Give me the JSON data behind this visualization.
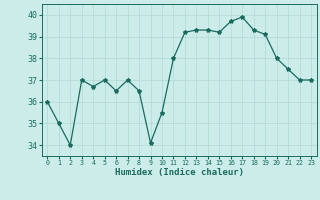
{
  "x": [
    0,
    1,
    2,
    3,
    4,
    5,
    6,
    7,
    8,
    9,
    10,
    11,
    12,
    13,
    14,
    15,
    16,
    17,
    18,
    19,
    20,
    21,
    22,
    23
  ],
  "y": [
    36.0,
    35.0,
    34.0,
    37.0,
    36.7,
    37.0,
    36.5,
    37.0,
    36.5,
    34.1,
    35.5,
    38.0,
    39.2,
    39.3,
    39.3,
    39.2,
    39.7,
    39.9,
    39.3,
    39.1,
    38.0,
    37.5,
    37.0,
    37.0
  ],
  "line_color": "#1a6b5e",
  "marker": "*",
  "marker_size": 3,
  "bg_color": "#ccecea",
  "grid_color": "#aed8d4",
  "xlabel": "Humidex (Indice chaleur)",
  "ylim": [
    33.5,
    40.5
  ],
  "xlim": [
    -0.5,
    23.5
  ],
  "yticks": [
    34,
    35,
    36,
    37,
    38,
    39,
    40
  ],
  "xticks": [
    0,
    1,
    2,
    3,
    4,
    5,
    6,
    7,
    8,
    9,
    10,
    11,
    12,
    13,
    14,
    15,
    16,
    17,
    18,
    19,
    20,
    21,
    22,
    23
  ],
  "label_color": "#1a6b5e",
  "tick_color": "#1a6b5e",
  "xlabel_fontsize": 6.5,
  "ytick_fontsize": 6,
  "xtick_fontsize": 4.8
}
